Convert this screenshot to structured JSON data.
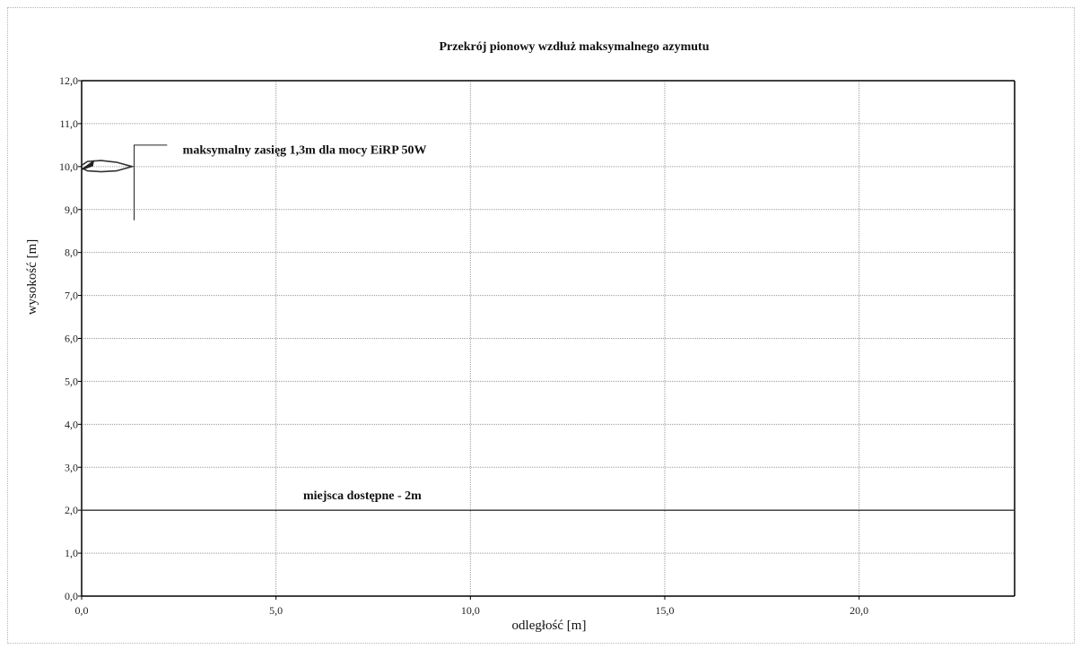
{
  "chart_data": {
    "type": "line",
    "title": "Przekrój pionowy wzdłuż maksymalnego azymutu",
    "xlabel": "odległość [m]",
    "ylabel": "wysokość [m]",
    "xlim": [
      0,
      24
    ],
    "ylim": [
      0,
      12
    ],
    "xticks": [
      0,
      5,
      10,
      15,
      20
    ],
    "xtick_labels": [
      "0,0",
      "5,0",
      "10,0",
      "15,0",
      "20,0"
    ],
    "yticks": [
      0,
      1,
      2,
      3,
      4,
      5,
      6,
      7,
      8,
      9,
      10,
      11,
      12
    ],
    "ytick_labels": [
      "0,0",
      "1,0",
      "2,0",
      "3,0",
      "4,0",
      "5,0",
      "6,0",
      "7,0",
      "8,0",
      "9,0",
      "10,0",
      "11,0",
      "12,0"
    ],
    "grid": true,
    "series": [
      {
        "values": [
          {
            "x": 0,
            "y": 2
          },
          {
            "x": 24,
            "y": 2
          }
        ]
      },
      {
        "values": [
          {
            "x": 0,
            "y": 10.03
          },
          {
            "x": 0.15,
            "y": 10.12
          },
          {
            "x": 0.5,
            "y": 10.14
          },
          {
            "x": 0.9,
            "y": 10.1
          },
          {
            "x": 1.3,
            "y": 10.0
          },
          {
            "x": 0.9,
            "y": 9.9
          },
          {
            "x": 0.5,
            "y": 9.88
          },
          {
            "x": 0.15,
            "y": 9.9
          },
          {
            "x": 0,
            "y": 9.97
          }
        ]
      }
    ],
    "annotations": [
      {
        "text": "maksymalny zasięg 1,3m dla mocy EiRP 50W",
        "x": 2.6,
        "y": 10.3
      },
      {
        "text": "miejsca dostępne - 2m",
        "x": 5.7,
        "y": 2.25
      }
    ],
    "colors": {
      "grid": "#9a9a9a",
      "axes": "#000000",
      "series": "#333333"
    }
  }
}
